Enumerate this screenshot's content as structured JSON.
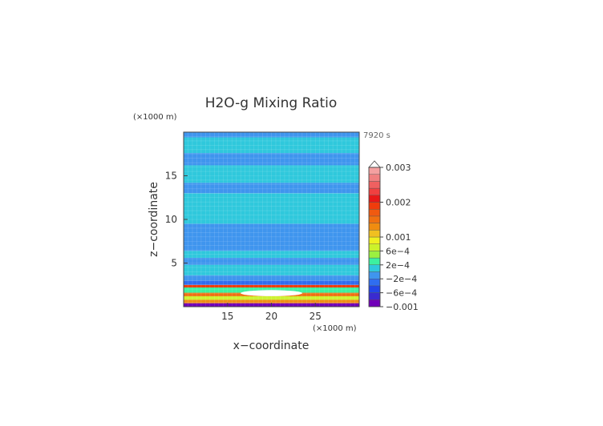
{
  "chart_data": {
    "type": "heatmap",
    "title": "H2O-g Mixing Ratio",
    "xlabel": "x−coordinate",
    "ylabel": "z−coordinate",
    "x_unit": "(×1000 m)",
    "y_unit": "(×1000 m)",
    "time_label": "7920 s",
    "xlim": [
      10,
      30
    ],
    "ylim": [
      0,
      20
    ],
    "x_ticks": [
      15,
      20,
      25
    ],
    "y_ticks": [
      5,
      10,
      15
    ],
    "x_tick_labels": [
      "15",
      "20",
      "25"
    ],
    "y_tick_labels": [
      "5",
      "10",
      "15"
    ],
    "colorbar_labels": [
      "0.003",
      "0.002",
      "0.001",
      "6e−4",
      "2e−4",
      "−2e−4",
      "−6e−4",
      "−0.001"
    ],
    "colorbar_label_values": [
      0.003,
      0.002,
      0.001,
      0.0006,
      0.0002,
      -0.0002,
      -0.0006,
      -0.001
    ],
    "levels": [
      -0.001,
      -0.0008,
      -0.0006,
      -0.0004,
      -0.0002,
      0.0,
      0.0002,
      0.0004,
      0.0006,
      0.0008,
      0.001,
      0.0012,
      0.0014,
      0.0016,
      0.0018,
      0.002,
      0.0022,
      0.0024,
      0.0026,
      0.0028,
      0.003
    ],
    "colors": [
      "#7000b8",
      "#3a2bd0",
      "#2245e8",
      "#2f6df0",
      "#3f95ee",
      "#2fc8dc",
      "#3cf0a0",
      "#9cf040",
      "#ccf22a",
      "#f0f020",
      "#f0c020",
      "#f08c10",
      "#f07010",
      "#f05a10",
      "#f03c0c",
      "#e81818",
      "#f04040",
      "#f06060",
      "#f08080",
      "#f4a0a0"
    ],
    "field_bands": [
      {
        "z": [
          0.0,
          0.4
        ],
        "value": -0.0009
      },
      {
        "z": [
          0.4,
          0.8
        ],
        "value": 0.0012
      },
      {
        "z": [
          0.8,
          1.2
        ],
        "value": 0.0007
      },
      {
        "z": [
          1.2,
          1.6
        ],
        "value": 0.0015
      },
      {
        "z": [
          1.6,
          2.2
        ],
        "value": 0.0003
      },
      {
        "z": [
          2.2,
          2.5
        ],
        "value": 0.0019
      },
      {
        "z": [
          2.5,
          3.0
        ],
        "value": -0.0003
      },
      {
        "z": [
          3.0,
          3.6
        ],
        "value": -0.0001
      },
      {
        "z": [
          3.6,
          4.8
        ],
        "value": 0.0001
      },
      {
        "z": [
          4.8,
          5.6
        ],
        "value": -0.0001
      },
      {
        "z": [
          5.6,
          6.4
        ],
        "value": 0.0001
      },
      {
        "z": [
          6.4,
          9.5
        ],
        "value": -0.0001
      },
      {
        "z": [
          9.5,
          13.0
        ],
        "value": 0.0001
      },
      {
        "z": [
          13.0,
          14.2
        ],
        "value": -0.0001
      },
      {
        "z": [
          14.2,
          16.2
        ],
        "value": 0.0001
      },
      {
        "z": [
          16.2,
          17.6
        ],
        "value": -0.0001
      },
      {
        "z": [
          17.6,
          19.4
        ],
        "value": 0.0001
      },
      {
        "z": [
          19.4,
          20.0
        ],
        "value": -0.0001
      }
    ],
    "center_anomaly": {
      "x_range": [
        16.5,
        23.5
      ],
      "z_range": [
        1.2,
        1.9
      ],
      "value": 0.0031
    }
  }
}
